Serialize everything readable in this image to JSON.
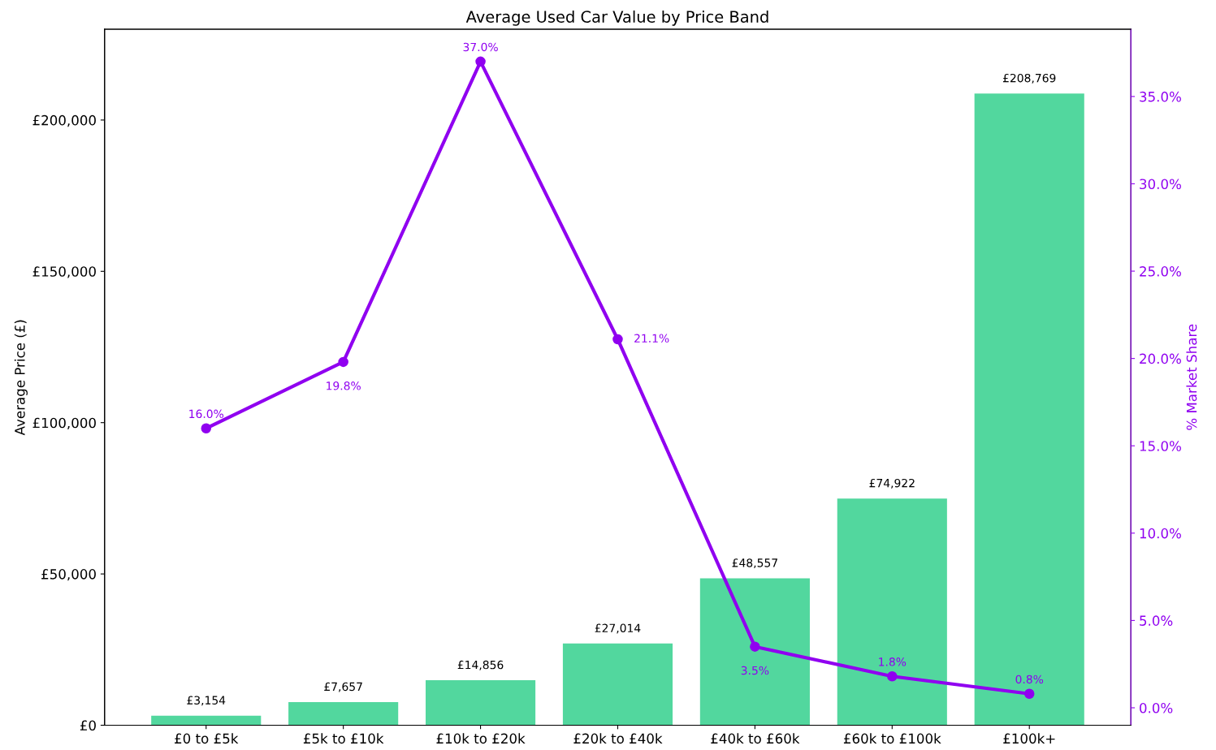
{
  "chart_data": {
    "type": "bar",
    "title": "Average Used Car Value by Price Band",
    "ylabel": "Average Price (£)",
    "y2label": "% Market Share",
    "categories": [
      "£0 to £5k",
      "£5k to £10k",
      "£10k to £20k",
      "£20k to £40k",
      "£40k to £60k",
      "£60k to £100k",
      "£100k+"
    ],
    "series": [
      {
        "color": "#52d79e",
        "values": [
          3154,
          7657,
          14856,
          27014,
          48557,
          74922,
          208769
        ],
        "value_labels": [
          "£3,154",
          "£7,657",
          "£14,856",
          "£27,014",
          "£48,557",
          "£74,922",
          "£208,769"
        ]
      },
      {
        "type": "line",
        "axis": "y2",
        "color": "#9000f0",
        "marker": "circle",
        "values": [
          16.0,
          19.8,
          37.0,
          21.1,
          3.5,
          1.8,
          0.8
        ],
        "value_labels": [
          "16.0%",
          "19.8%",
          "37.0%",
          "21.1%",
          "3.5%",
          "1.8%",
          "0.8%"
        ]
      }
    ],
    "ylim": [
      0,
      230000
    ],
    "yticks": [
      {
        "value": 0,
        "label": "£0"
      },
      {
        "value": 50000,
        "label": "£50,000"
      },
      {
        "value": 100000,
        "label": "£100,000"
      },
      {
        "value": 150000,
        "label": "£150,000"
      },
      {
        "value": 200000,
        "label": "£200,000"
      }
    ],
    "y2lim": [
      -1,
      38.85
    ],
    "y2ticks": [
      {
        "value": 0,
        "label": "0.0%"
      },
      {
        "value": 5,
        "label": "5.0%"
      },
      {
        "value": 10,
        "label": "10.0%"
      },
      {
        "value": 15,
        "label": "15.0%"
      },
      {
        "value": 20,
        "label": "20.0%"
      },
      {
        "value": 25,
        "label": "25.0%"
      },
      {
        "value": 30,
        "label": "30.0%"
      },
      {
        "value": 35,
        "label": "35.0%"
      }
    ],
    "grid": false
  }
}
